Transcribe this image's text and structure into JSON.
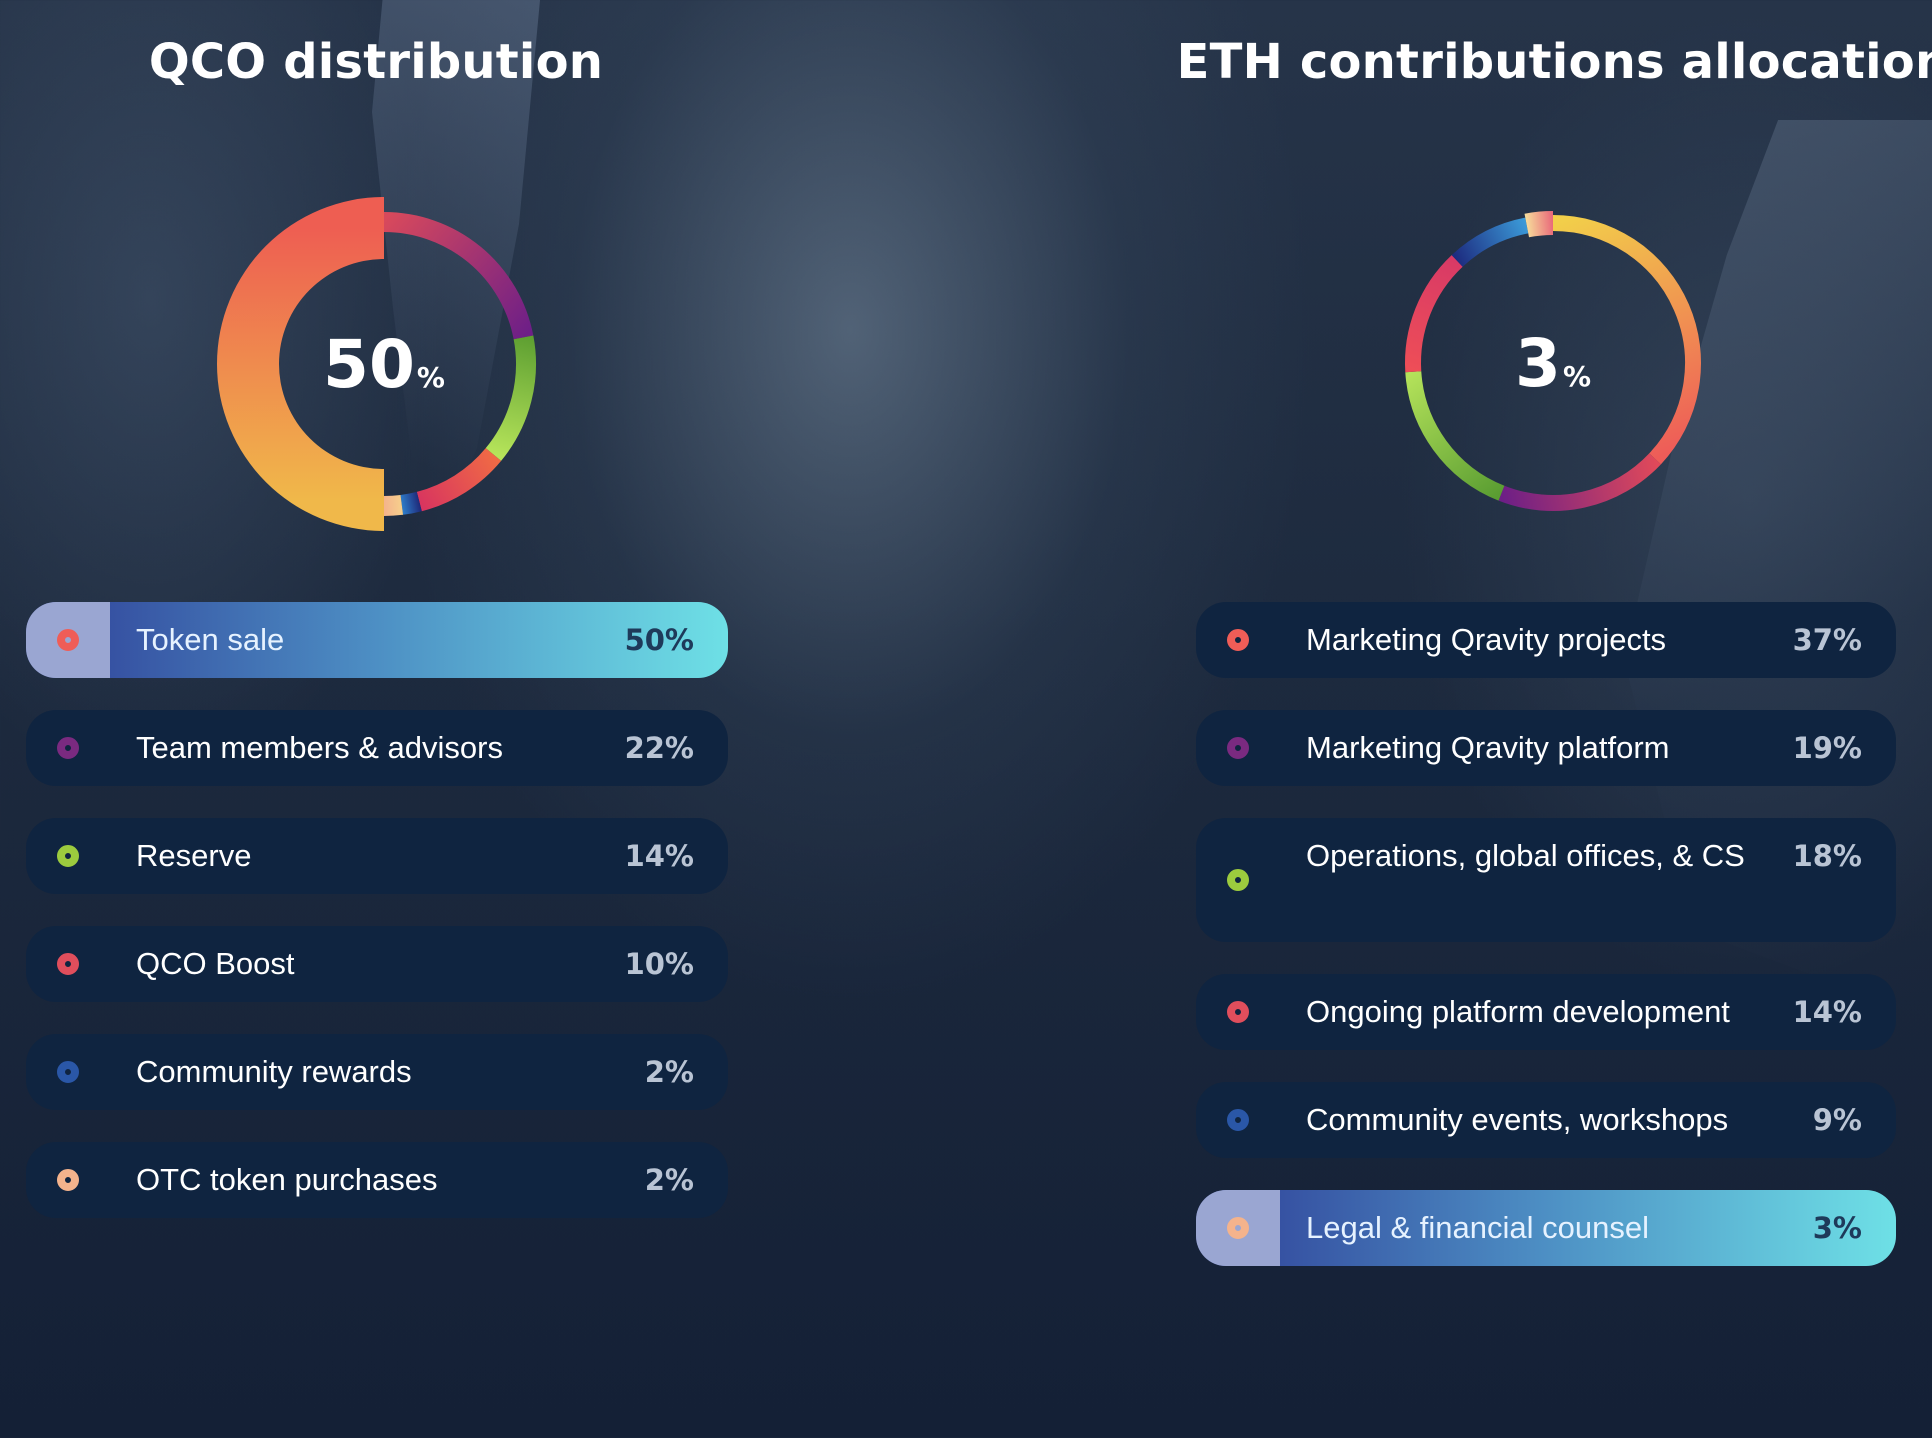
{
  "chart_data": [
    {
      "type": "pie",
      "title": "QCO distribution",
      "center_value": "50",
      "center_unit": "%",
      "categories": [
        "Token sale",
        "Team members & advisors",
        "Reserve",
        "QCO Boost",
        "Community rewards",
        "OTC token purchases"
      ],
      "values": [
        50,
        22,
        14,
        10,
        2,
        2
      ],
      "value_labels": [
        "50%",
        "22%",
        "14%",
        "10%",
        "2%",
        "2%"
      ],
      "colors": [
        "#ef5d57",
        "#7a2a80",
        "#9ccb3e",
        "#e04e5c",
        "#2a57a7",
        "#f4b38c"
      ],
      "gradients": [
        [
          "#f0b84a",
          "#ee5e52"
        ],
        [
          "#d8495c",
          "#6e1f87"
        ],
        [
          "#5fa032",
          "#b6e45a"
        ],
        [
          "#f06a45",
          "#d8355f"
        ],
        [
          "#1e2a7a",
          "#2e7cc8"
        ],
        [
          "#f6cf8c",
          "#f4b38c"
        ]
      ],
      "highlighted": "Token sale",
      "legend": "bottom"
    },
    {
      "type": "pie",
      "title": "ETH contributions allocation",
      "center_value": "3",
      "center_unit": "%",
      "categories": [
        "Marketing Qravity projects",
        "Marketing Qravity platform",
        "Operations, global offices, & CS",
        "Ongoing platform development",
        "Community events, workshops",
        "Legal & financial counsel"
      ],
      "values": [
        37,
        19,
        18,
        14,
        9,
        3
      ],
      "value_labels": [
        "37%",
        "19%",
        "18%",
        "14%",
        "9%",
        "3%"
      ],
      "colors": [
        "#ef5d57",
        "#7a2a80",
        "#9ccb3e",
        "#e04e5c",
        "#2a57a7",
        "#f4b38c"
      ],
      "gradients": [
        [
          "#f2cf4a",
          "#ee5c58"
        ],
        [
          "#e0495a",
          "#6d1f86"
        ],
        [
          "#5a9d32",
          "#b4e25a"
        ],
        [
          "#ee4e57",
          "#d83a66"
        ],
        [
          "#1d2c80",
          "#3b9ad8"
        ],
        [
          "#f6da9a",
          "#e9697a"
        ]
      ],
      "highlighted": "Legal & financial counsel",
      "legend": "bottom"
    }
  ]
}
